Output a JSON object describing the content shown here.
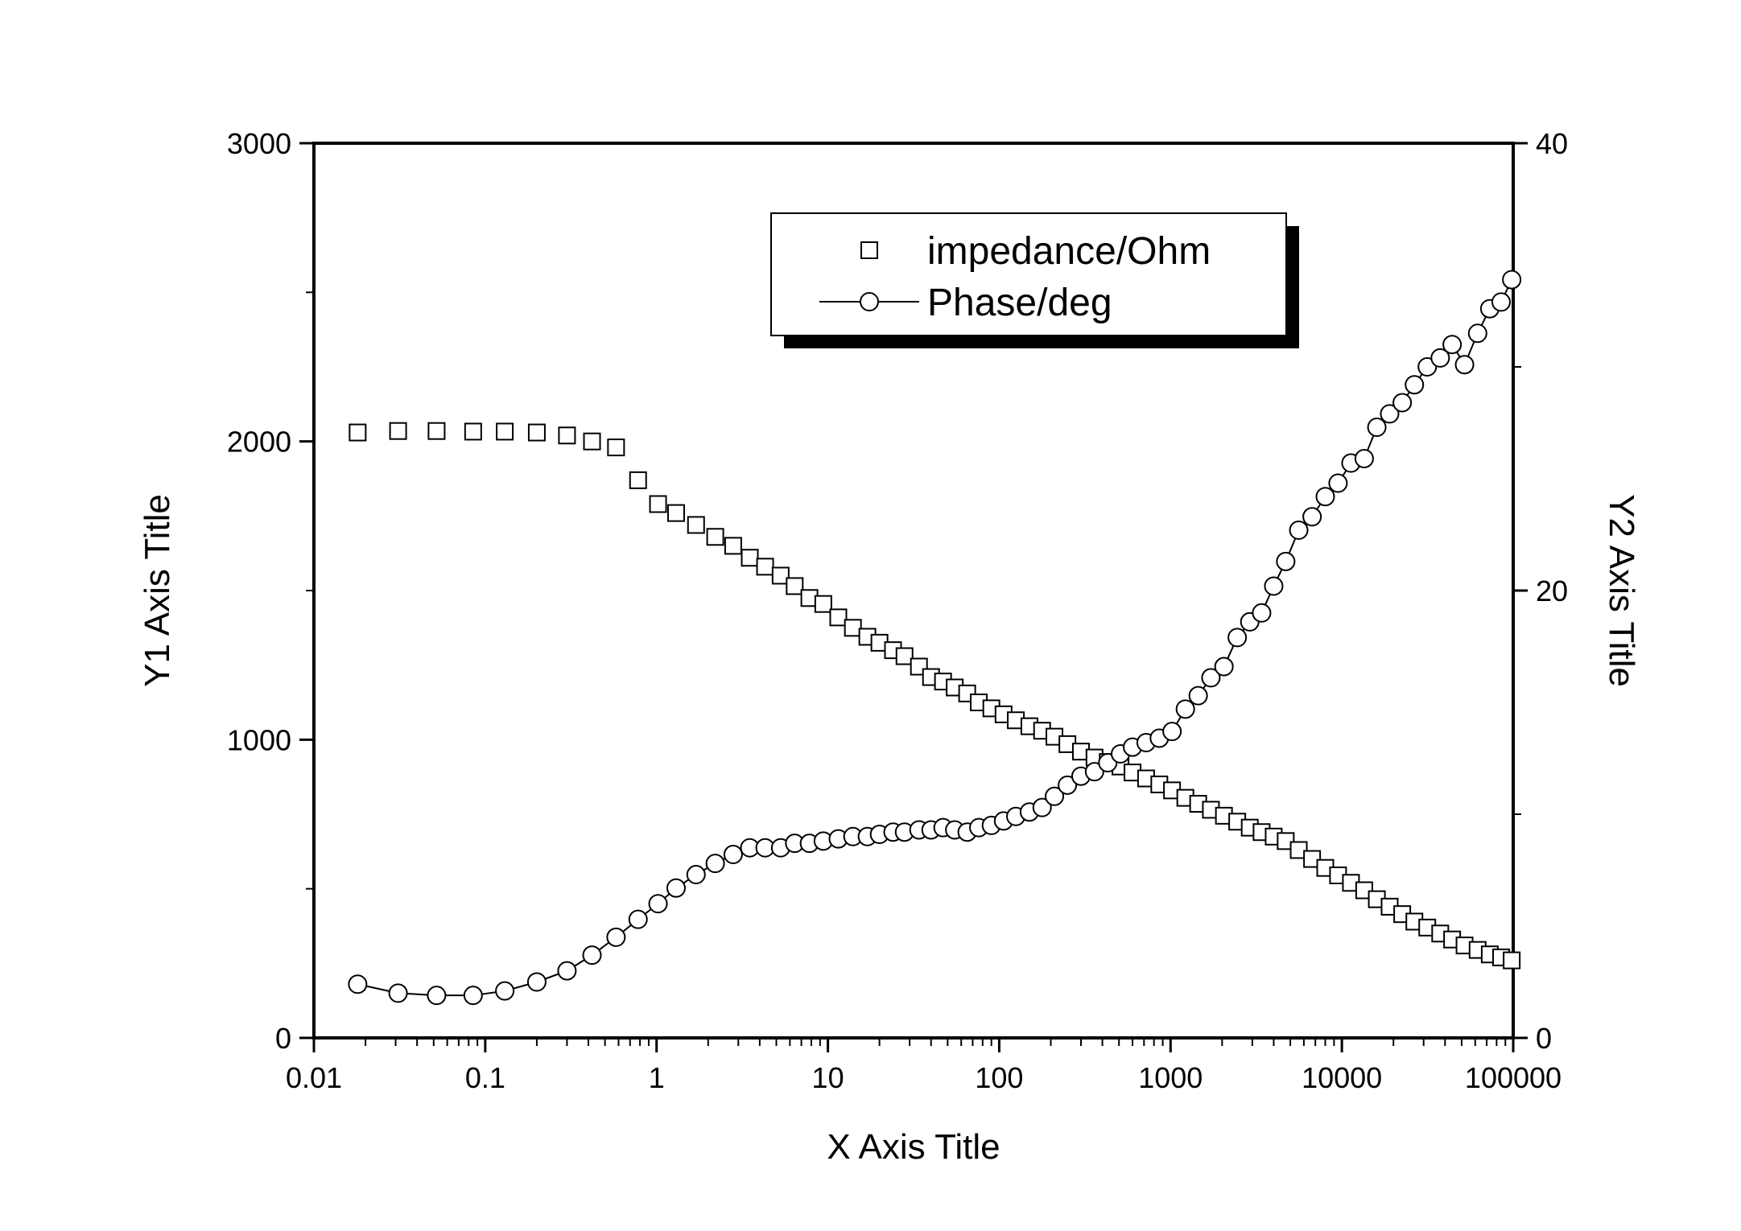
{
  "chart_data": {
    "type": "scatter",
    "title": "",
    "xlabel": "X Axis Title",
    "y1label": "Y1 Axis Title",
    "y2label": "Y2 Axis Title",
    "xscale": "log",
    "xlim": [
      0.01,
      100000
    ],
    "y1lim": [
      0,
      3000
    ],
    "y2lim": [
      0,
      40
    ],
    "grid": false,
    "legend_position": "top-center",
    "x_tick_labels": [
      "0.01",
      "0.1",
      "1",
      "10",
      "100",
      "1000",
      "10000",
      "100000"
    ],
    "x_tick_values": [
      0.01,
      0.1,
      1,
      10,
      100,
      1000,
      10000,
      100000
    ],
    "y1_tick_labels": [
      "0",
      "1000",
      "2000",
      "3000"
    ],
    "y1_tick_values": [
      0,
      1000,
      2000,
      3000
    ],
    "y1_minor_tick_values": [
      500,
      1500,
      2500
    ],
    "y2_tick_labels": [
      "0",
      "20",
      "40"
    ],
    "y2_tick_values": [
      0,
      20,
      40
    ],
    "y2_minor_tick_values": [
      10,
      30
    ],
    "series": [
      {
        "name": "impedance/Ohm",
        "axis": "y1",
        "marker": "square",
        "line": false,
        "points": [
          [
            0.018,
            2030
          ],
          [
            0.031,
            2035
          ],
          [
            0.052,
            2035
          ],
          [
            0.085,
            2033
          ],
          [
            0.13,
            2033
          ],
          [
            0.2,
            2030
          ],
          [
            0.3,
            2020
          ],
          [
            0.42,
            2000
          ],
          [
            0.58,
            1980
          ],
          [
            0.78,
            1870
          ],
          [
            1.02,
            1790
          ],
          [
            1.3,
            1760
          ],
          [
            1.7,
            1720
          ],
          [
            2.2,
            1680
          ],
          [
            2.8,
            1650
          ],
          [
            3.5,
            1610
          ],
          [
            4.3,
            1580
          ],
          [
            5.3,
            1550
          ],
          [
            6.4,
            1515
          ],
          [
            7.8,
            1475
          ],
          [
            9.4,
            1455
          ],
          [
            11.5,
            1410
          ],
          [
            14,
            1375
          ],
          [
            17,
            1345
          ],
          [
            20,
            1325
          ],
          [
            24,
            1300
          ],
          [
            28,
            1280
          ],
          [
            34,
            1245
          ],
          [
            40,
            1210
          ],
          [
            47,
            1195
          ],
          [
            55,
            1175
          ],
          [
            65,
            1155
          ],
          [
            76,
            1125
          ],
          [
            90,
            1105
          ],
          [
            106,
            1085
          ],
          [
            125,
            1065
          ],
          [
            150,
            1045
          ],
          [
            178,
            1030
          ],
          [
            210,
            1010
          ],
          [
            250,
            985
          ],
          [
            300,
            960
          ],
          [
            360,
            940
          ],
          [
            430,
            925
          ],
          [
            510,
            910
          ],
          [
            600,
            890
          ],
          [
            720,
            870
          ],
          [
            860,
            850
          ],
          [
            1020,
            830
          ],
          [
            1220,
            805
          ],
          [
            1450,
            785
          ],
          [
            1720,
            765
          ],
          [
            2050,
            745
          ],
          [
            2450,
            725
          ],
          [
            2900,
            705
          ],
          [
            3400,
            690
          ],
          [
            4000,
            675
          ],
          [
            4700,
            660
          ],
          [
            5600,
            630
          ],
          [
            6700,
            600
          ],
          [
            8000,
            570
          ],
          [
            9500,
            545
          ],
          [
            11300,
            520
          ],
          [
            13500,
            495
          ],
          [
            16000,
            465
          ],
          [
            19000,
            440
          ],
          [
            22500,
            415
          ],
          [
            26500,
            390
          ],
          [
            31500,
            370
          ],
          [
            37500,
            350
          ],
          [
            44000,
            330
          ],
          [
            52000,
            310
          ],
          [
            62000,
            295
          ],
          [
            73000,
            280
          ],
          [
            85000,
            270
          ],
          [
            98000,
            260
          ]
        ]
      },
      {
        "name": "Phase/deg",
        "axis": "y2",
        "marker": "circle",
        "line": true,
        "points": [
          [
            0.018,
            2.4
          ],
          [
            0.031,
            2.0
          ],
          [
            0.052,
            1.9
          ],
          [
            0.085,
            1.9
          ],
          [
            0.13,
            2.1
          ],
          [
            0.2,
            2.5
          ],
          [
            0.3,
            3.0
          ],
          [
            0.42,
            3.7
          ],
          [
            0.58,
            4.5
          ],
          [
            0.78,
            5.3
          ],
          [
            1.02,
            6.0
          ],
          [
            1.3,
            6.7
          ],
          [
            1.7,
            7.3
          ],
          [
            2.2,
            7.8
          ],
          [
            2.8,
            8.2
          ],
          [
            3.5,
            8.5
          ],
          [
            4.3,
            8.5
          ],
          [
            5.3,
            8.5
          ],
          [
            6.4,
            8.7
          ],
          [
            7.8,
            8.7
          ],
          [
            9.4,
            8.8
          ],
          [
            11.5,
            8.9
          ],
          [
            14,
            9.0
          ],
          [
            17,
            9.0
          ],
          [
            20,
            9.1
          ],
          [
            24,
            9.2
          ],
          [
            28,
            9.2
          ],
          [
            34,
            9.3
          ],
          [
            40,
            9.3
          ],
          [
            47,
            9.4
          ],
          [
            55,
            9.3
          ],
          [
            65,
            9.2
          ],
          [
            76,
            9.4
          ],
          [
            90,
            9.5
          ],
          [
            106,
            9.7
          ],
          [
            125,
            9.9
          ],
          [
            150,
            10.1
          ],
          [
            178,
            10.3
          ],
          [
            210,
            10.8
          ],
          [
            250,
            11.3
          ],
          [
            300,
            11.7
          ],
          [
            360,
            11.9
          ],
          [
            430,
            12.3
          ],
          [
            510,
            12.7
          ],
          [
            600,
            13.0
          ],
          [
            720,
            13.2
          ],
          [
            860,
            13.4
          ],
          [
            1020,
            13.7
          ],
          [
            1220,
            14.7
          ],
          [
            1450,
            15.3
          ],
          [
            1720,
            16.1
          ],
          [
            2050,
            16.6
          ],
          [
            2450,
            17.9
          ],
          [
            2900,
            18.6
          ],
          [
            3400,
            19.0
          ],
          [
            4000,
            20.2
          ],
          [
            4700,
            21.3
          ],
          [
            5600,
            22.7
          ],
          [
            6700,
            23.3
          ],
          [
            8000,
            24.2
          ],
          [
            9500,
            24.8
          ],
          [
            11300,
            25.7
          ],
          [
            13500,
            25.9
          ],
          [
            16000,
            27.3
          ],
          [
            19000,
            27.9
          ],
          [
            22500,
            28.4
          ],
          [
            26500,
            29.2
          ],
          [
            31500,
            30.0
          ],
          [
            37500,
            30.4
          ],
          [
            44000,
            31.0
          ],
          [
            52000,
            30.1
          ],
          [
            62000,
            31.5
          ],
          [
            73000,
            32.6
          ],
          [
            85000,
            32.9
          ],
          [
            98000,
            33.9
          ]
        ]
      }
    ]
  }
}
